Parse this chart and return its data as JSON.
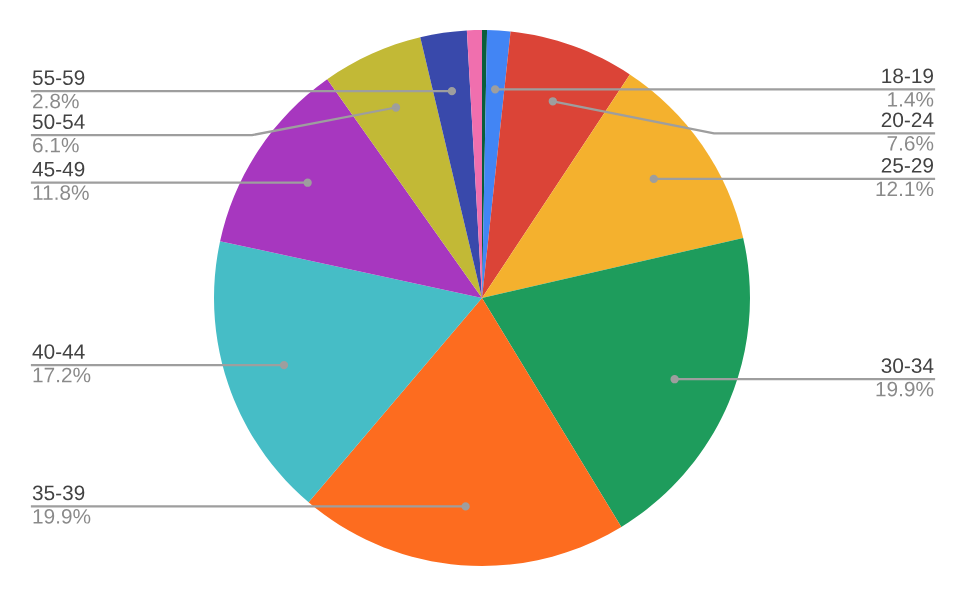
{
  "chart_data": {
    "type": "pie",
    "categories": [
      null,
      "18-19",
      "20-24",
      "25-29",
      "30-34",
      "35-39",
      "40-44",
      "45-49",
      "50-54",
      "55-59",
      null
    ],
    "values": [
      0.3,
      1.4,
      7.6,
      12.1,
      19.9,
      19.9,
      17.2,
      11.8,
      6.1,
      2.8,
      0.9
    ],
    "value_labels": [
      null,
      "1.4%",
      "7.6%",
      "12.1%",
      "19.9%",
      "19.9%",
      "17.2%",
      "11.8%",
      "6.1%",
      "2.8%",
      null
    ],
    "colors": [
      "#0b5d3b",
      "#4285f4",
      "#db4437",
      "#f4b12e",
      "#1e9c5c",
      "#fd6c1f",
      "#46bdc6",
      "#a737bf",
      "#c2b936",
      "#3949ab",
      "#f06fae"
    ]
  }
}
